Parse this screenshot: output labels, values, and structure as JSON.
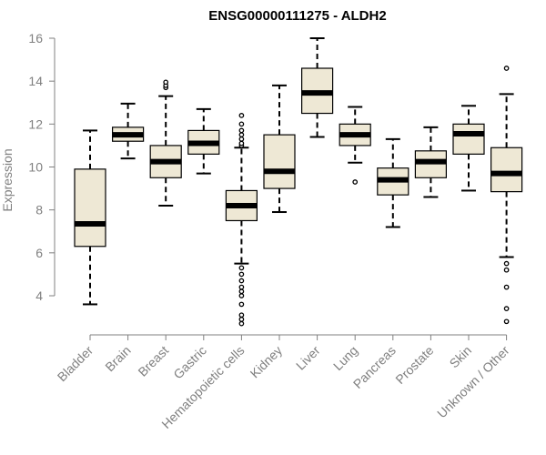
{
  "chart_data": {
    "type": "boxplot",
    "title": "ENSG00000111275 - ALDH2",
    "ylabel": "Expression",
    "xlabel": "",
    "ylim": [
      3,
      16
    ],
    "yticks": [
      4,
      6,
      8,
      10,
      12,
      14,
      16
    ],
    "grid": false,
    "colors": {
      "box_fill": "#EEE8D5",
      "stroke": "#000000",
      "axis": "#808080"
    },
    "categories": [
      "Bladder",
      "Brain",
      "Breast",
      "Gastric",
      "Hematopoietic cells",
      "Kidney",
      "Liver",
      "Lung",
      "Pancreas",
      "Prostate",
      "Skin",
      "Unknown / Other"
    ],
    "boxes": [
      {
        "category": "Bladder",
        "whisker_low": 3.6,
        "q1": 6.3,
        "median": 7.35,
        "q3": 9.9,
        "whisker_high": 11.7,
        "outliers": []
      },
      {
        "category": "Brain",
        "whisker_low": 10.4,
        "q1": 11.2,
        "median": 11.5,
        "q3": 11.85,
        "whisker_high": 12.95,
        "outliers": []
      },
      {
        "category": "Breast",
        "whisker_low": 8.2,
        "q1": 9.5,
        "median": 10.25,
        "q3": 11.0,
        "whisker_high": 13.3,
        "outliers": [
          13.7,
          13.8,
          13.95
        ]
      },
      {
        "category": "Gastric",
        "whisker_low": 9.7,
        "q1": 10.6,
        "median": 11.1,
        "q3": 11.7,
        "whisker_high": 12.7,
        "outliers": []
      },
      {
        "category": "Hematopoietic cells",
        "whisker_low": 5.5,
        "q1": 7.5,
        "median": 8.2,
        "q3": 8.9,
        "whisker_high": 10.9,
        "outliers": [
          2.7,
          2.9,
          3.1,
          3.6,
          4.0,
          4.2,
          4.4,
          4.7,
          5.0,
          5.3,
          11.0,
          11.1,
          11.3,
          11.5,
          11.7,
          12.0,
          12.4
        ]
      },
      {
        "category": "Kidney",
        "whisker_low": 7.9,
        "q1": 9.0,
        "median": 9.8,
        "q3": 11.5,
        "whisker_high": 13.8,
        "outliers": []
      },
      {
        "category": "Liver",
        "whisker_low": 11.4,
        "q1": 12.5,
        "median": 13.45,
        "q3": 14.6,
        "whisker_high": 16.0,
        "outliers": []
      },
      {
        "category": "Lung",
        "whisker_low": 10.2,
        "q1": 11.0,
        "median": 11.5,
        "q3": 12.0,
        "whisker_high": 12.8,
        "outliers": [
          9.3
        ]
      },
      {
        "category": "Pancreas",
        "whisker_low": 7.2,
        "q1": 8.7,
        "median": 9.4,
        "q3": 9.95,
        "whisker_high": 11.3,
        "outliers": []
      },
      {
        "category": "Prostate",
        "whisker_low": 8.6,
        "q1": 9.5,
        "median": 10.25,
        "q3": 10.75,
        "whisker_high": 11.85,
        "outliers": []
      },
      {
        "category": "Skin",
        "whisker_low": 8.9,
        "q1": 10.6,
        "median": 11.55,
        "q3": 12.0,
        "whisker_high": 12.85,
        "outliers": []
      },
      {
        "category": "Unknown / Other",
        "whisker_low": 5.8,
        "q1": 8.85,
        "median": 9.7,
        "q3": 10.9,
        "whisker_high": 13.4,
        "outliers": [
          2.8,
          3.4,
          4.4,
          5.2,
          5.5,
          14.6
        ]
      }
    ]
  }
}
